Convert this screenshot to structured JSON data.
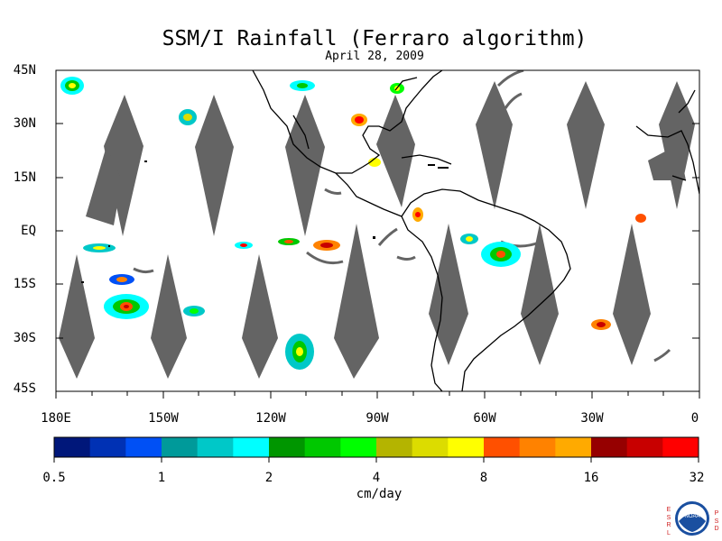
{
  "title": "SSM/I Rainfall (Ferraro algorithm)",
  "subtitle": "April 28, 2009",
  "lat_labels": [
    "45N",
    "30N",
    "15N",
    "EQ",
    "15S",
    "30S",
    "45S"
  ],
  "lon_labels": [
    "180E",
    "150W",
    "120W",
    "90W",
    "60W",
    "30W",
    "0"
  ],
  "colorbar": {
    "units": "cm/day",
    "tick_labels": [
      "0.5",
      "1",
      "2",
      "4",
      "8",
      "16",
      "32"
    ],
    "colors": [
      "#00177a",
      "#0031b4",
      "#0050f5",
      "#009a9a",
      "#00c8c8",
      "#00ffff",
      "#009600",
      "#00c800",
      "#00ff00",
      "#b4b400",
      "#dcdc00",
      "#ffff00",
      "#ff5000",
      "#ff8200",
      "#ffaa00",
      "#960000",
      "#c80000",
      "#ff0000"
    ]
  },
  "map": {
    "no_data_color": "#646464",
    "land_outline_color": "#000000"
  },
  "logo": {
    "text": "NOAA",
    "left_letters": [
      "E",
      "S",
      "R",
      "L"
    ],
    "right_letters": [
      "P",
      "S",
      "D"
    ]
  }
}
